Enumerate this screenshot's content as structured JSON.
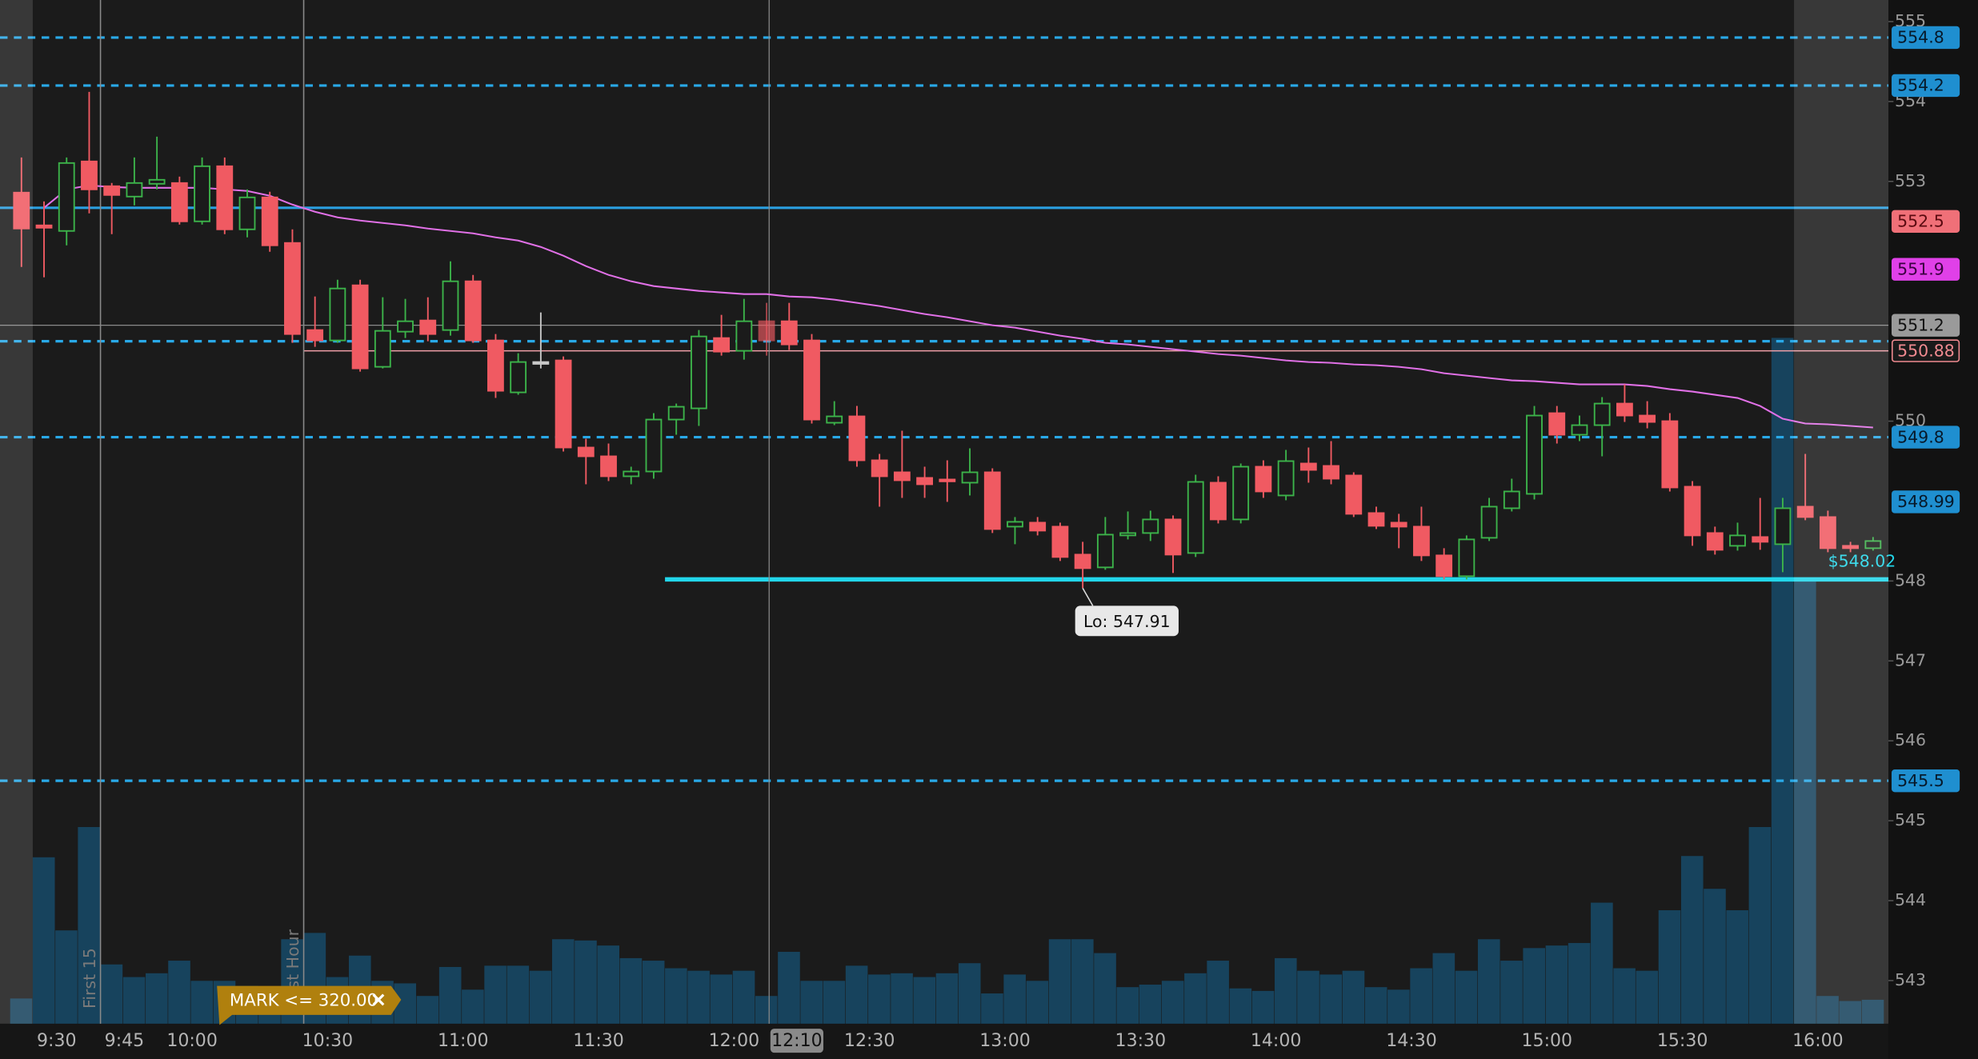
{
  "chart_data": {
    "type": "candlestick",
    "categories": [
      null,
      "9:30",
      null,
      null,
      "9:45",
      null,
      null,
      "10:00",
      null,
      null,
      null,
      null,
      null,
      "10:30",
      null,
      null,
      null,
      null,
      null,
      "11:00",
      null,
      null,
      null,
      null,
      null,
      "11:30",
      null,
      null,
      null,
      null,
      null,
      "12:00",
      null,
      null,
      null,
      null,
      null,
      "12:30",
      null,
      null,
      null,
      null,
      null,
      "13:00",
      null,
      null,
      null,
      null,
      null,
      "13:30",
      null,
      null,
      null,
      null,
      null,
      "14:00",
      null,
      null,
      null,
      null,
      null,
      "14:30",
      null,
      null,
      null,
      null,
      null,
      "15:00",
      null,
      null,
      null,
      null,
      null,
      "15:30",
      null,
      null,
      null,
      null,
      null,
      "16:00",
      null,
      null,
      null
    ],
    "open": [
      552.86,
      552.45,
      552.38,
      553.25,
      552.94,
      552.81,
      552.97,
      552.98,
      552.5,
      553.19,
      552.4,
      552.8,
      552.23,
      551.14,
      551.01,
      551.7,
      550.68,
      551.12,
      551.26,
      551.14,
      551.75,
      551.01,
      550.36,
      550.74,
      550.76,
      549.67,
      549.56,
      549.31,
      549.37,
      550.02,
      550.16,
      551.04,
      550.88,
      551.25,
      551.25,
      551.01,
      549.98,
      550.06,
      549.51,
      549.36,
      549.29,
      549.27,
      549.23,
      549.36,
      548.68,
      548.73,
      548.68,
      548.33,
      548.17,
      548.57,
      548.6,
      548.77,
      548.35,
      549.23,
      548.77,
      549.43,
      549.07,
      549.47,
      549.44,
      549.32,
      548.85,
      548.73,
      548.68,
      548.32,
      548.06,
      548.54,
      548.91,
      549.09,
      550.1,
      549.83,
      549.95,
      550.22,
      550.07,
      550.0,
      549.18,
      548.6,
      548.44,
      548.55,
      548.46,
      548.93,
      548.8,
      548.44,
      548.41
    ],
    "high": [
      553.3,
      552.75,
      553.3,
      554.12,
      552.98,
      553.3,
      553.56,
      553.06,
      553.3,
      553.3,
      552.9,
      552.87,
      552.4,
      551.56,
      551.77,
      551.77,
      551.55,
      551.53,
      551.55,
      552.0,
      551.83,
      551.09,
      550.85,
      551.36,
      550.81,
      549.78,
      549.72,
      549.43,
      550.1,
      550.22,
      551.14,
      551.33,
      551.53,
      551.48,
      551.48,
      551.09,
      550.25,
      550.19,
      549.59,
      549.88,
      549.43,
      549.51,
      549.66,
      549.41,
      548.8,
      548.8,
      548.73,
      548.49,
      548.8,
      548.87,
      548.88,
      548.82,
      549.33,
      549.31,
      549.47,
      549.51,
      549.64,
      549.67,
      549.75,
      549.36,
      548.93,
      548.84,
      548.93,
      548.41,
      548.57,
      549.04,
      549.28,
      550.19,
      550.19,
      550.07,
      550.3,
      550.46,
      550.25,
      550.1,
      549.25,
      548.68,
      548.73,
      549.04,
      549.04,
      549.59,
      548.88,
      548.49,
      548.55
    ],
    "low": [
      551.93,
      551.8,
      552.2,
      552.6,
      552.34,
      552.7,
      552.9,
      552.46,
      552.46,
      552.34,
      552.3,
      552.12,
      550.98,
      550.93,
      550.98,
      550.62,
      550.66,
      551.04,
      551.0,
      551.07,
      550.98,
      550.29,
      550.33,
      550.66,
      549.62,
      549.21,
      549.25,
      549.21,
      549.28,
      549.83,
      549.94,
      550.82,
      550.77,
      550.82,
      550.89,
      549.97,
      549.95,
      549.43,
      548.93,
      549.04,
      549.04,
      548.99,
      549.07,
      548.6,
      548.46,
      548.57,
      548.25,
      547.91,
      548.14,
      548.52,
      548.5,
      548.1,
      548.3,
      548.72,
      548.72,
      549.04,
      549.01,
      549.23,
      549.21,
      548.8,
      548.65,
      548.41,
      548.25,
      548.02,
      548.02,
      548.5,
      548.87,
      549.02,
      549.72,
      549.75,
      549.56,
      549.99,
      549.91,
      549.12,
      548.44,
      548.33,
      548.38,
      548.39,
      548.11,
      548.76,
      548.36,
      548.36,
      548.38
    ],
    "close": [
      552.41,
      552.42,
      553.23,
      552.9,
      552.83,
      552.98,
      553.02,
      552.5,
      553.19,
      552.4,
      552.8,
      552.2,
      551.09,
      551.01,
      551.66,
      550.66,
      551.13,
      551.25,
      551.09,
      551.75,
      551.01,
      550.38,
      550.74,
      550.74,
      549.67,
      549.56,
      549.31,
      549.37,
      550.02,
      550.18,
      551.06,
      550.87,
      551.25,
      551.01,
      550.96,
      550.02,
      550.06,
      549.51,
      549.31,
      549.26,
      549.21,
      549.25,
      549.36,
      548.65,
      548.74,
      548.63,
      548.3,
      548.16,
      548.58,
      548.6,
      548.77,
      548.33,
      549.24,
      548.77,
      549.43,
      549.12,
      549.5,
      549.39,
      549.28,
      548.84,
      548.69,
      548.68,
      548.32,
      548.06,
      548.52,
      548.93,
      549.12,
      550.07,
      549.83,
      549.95,
      550.22,
      550.07,
      549.99,
      549.17,
      548.57,
      548.39,
      548.57,
      548.49,
      548.91,
      548.8,
      548.41,
      548.41,
      548.5
    ],
    "volume": [
      20,
      132,
      74,
      156,
      47,
      37,
      40,
      50,
      34,
      34,
      30,
      29,
      67,
      72,
      37,
      54,
      34,
      32,
      22,
      45,
      27,
      46,
      46,
      42,
      67,
      66,
      62,
      52,
      50,
      44,
      42,
      39,
      42,
      22,
      57,
      34,
      34,
      46,
      39,
      40,
      37,
      40,
      48,
      24,
      39,
      34,
      67,
      67,
      56,
      29,
      31,
      34,
      40,
      50,
      28,
      26,
      52,
      42,
      39,
      42,
      29,
      27,
      44,
      56,
      42,
      67,
      50,
      60,
      62,
      64,
      96,
      44,
      42,
      90,
      133,
      107,
      90,
      156,
      544,
      354,
      22,
      18,
      19
    ],
    "volume_lim": [
      0,
      812
    ],
    "ma": {
      "color": "#e070e6",
      "values": [
        null,
        552.67,
        552.9,
        552.95,
        552.93,
        552.92,
        552.92,
        552.92,
        552.92,
        552.9,
        552.88,
        552.82,
        552.71,
        552.62,
        552.55,
        552.51,
        552.48,
        552.45,
        552.41,
        552.38,
        552.35,
        552.3,
        552.26,
        552.18,
        552.07,
        551.94,
        551.83,
        551.75,
        551.69,
        551.66,
        551.63,
        551.61,
        551.59,
        551.59,
        551.56,
        551.55,
        551.52,
        551.48,
        551.44,
        551.39,
        551.34,
        551.3,
        551.25,
        551.2,
        551.17,
        551.12,
        551.07,
        551.03,
        550.98,
        550.96,
        550.93,
        550.9,
        550.87,
        550.84,
        550.82,
        550.79,
        550.76,
        550.74,
        550.73,
        550.71,
        550.7,
        550.68,
        550.65,
        550.6,
        550.57,
        550.54,
        550.51,
        550.5,
        550.48,
        550.46,
        550.46,
        550.46,
        550.44,
        550.4,
        550.37,
        550.33,
        550.29,
        550.19,
        550.03,
        549.97,
        549.96,
        549.94,
        549.92
      ]
    },
    "ylim": [
      542.46,
      555.27
    ],
    "yticks": [
      543,
      544,
      545,
      546,
      547,
      548,
      550,
      553,
      554,
      555
    ],
    "up_color": "#3cb34a",
    "down_color": "#f05a62",
    "doji_color": "#c8c8c8",
    "volume_color": "#17435d",
    "regular_session": [
      1,
      79
    ],
    "levels": [
      {
        "value": 554.8,
        "style": "dashed",
        "color": "#29a9e8",
        "width": 2
      },
      {
        "value": 554.2,
        "style": "dashed",
        "color": "#29a9e8",
        "width": 2
      },
      {
        "value": 551.0,
        "style": "dashed",
        "color": "#29a9e8",
        "width": 2
      },
      {
        "value": 549.8,
        "style": "dashed",
        "color": "#29a9e8",
        "width": 2
      },
      {
        "value": 545.5,
        "style": "dashed",
        "color": "#29a9e8",
        "width": 2
      },
      {
        "value": 552.67,
        "style": "solid",
        "color": "#2a9fe0",
        "width": 2
      },
      {
        "value": 550.88,
        "style": "solid",
        "color": "#f0a0a8",
        "width": 1,
        "from": 13
      },
      {
        "value": 548.02,
        "style": "solid",
        "color": "#22d6ea",
        "width": 3.5,
        "from": 29,
        "label": "$548.02"
      }
    ],
    "price_tags": [
      {
        "value": 554.8,
        "bg": "#1f8fd0",
        "fg": "#07192a"
      },
      {
        "value": 554.2,
        "bg": "#1f8fd0",
        "fg": "#07192a"
      },
      {
        "value": 552.5,
        "bg": "#f07078",
        "fg": "#5a0a10"
      },
      {
        "value": 551.9,
        "bg": "#e040e8",
        "fg": "#3a0040"
      },
      {
        "value": 550.88,
        "bg": "#1a1a1a",
        "fg": "#f08a90",
        "border": "#f08a90"
      },
      {
        "value": 549.8,
        "bg": "#1f8fd0",
        "fg": "#07192a"
      },
      {
        "value": 548.99,
        "bg": "#1f8fd0",
        "fg": "#07192a"
      },
      {
        "value": 545.5,
        "bg": "#1f8fd0",
        "fg": "#07192a"
      }
    ],
    "crosshair": {
      "index": 33,
      "price": 551.2,
      "time_label": "12:10"
    },
    "markers": [
      {
        "index": 4,
        "label": "First 15"
      },
      {
        "index": 13,
        "label": "First Hour"
      }
    ],
    "lo_index": 47,
    "lo_label": "Lo: 547.91",
    "alert_label": "MARK <= 320.00"
  }
}
